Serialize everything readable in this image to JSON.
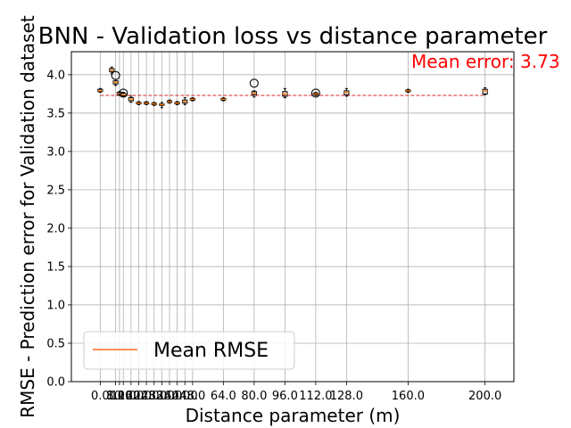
{
  "chart_data": {
    "type": "box",
    "title": "BNN - Validation loss vs distance parameter",
    "xlabel": "Distance parameter (m)",
    "ylabel": "RMSE - Prediction error for Validation dataset",
    "ylim": [
      0.0,
      4.3
    ],
    "xlim": [
      -15,
      215
    ],
    "yticks": [
      0.0,
      0.5,
      1.0,
      1.5,
      2.0,
      2.5,
      3.0,
      3.5,
      4.0
    ],
    "ytick_labels": [
      "0.0",
      "0.5",
      "1.0",
      "1.5",
      "2.0",
      "2.5",
      "3.0",
      "3.5",
      "4.0"
    ],
    "xticks": [
      0.0,
      8.0,
      10.0,
      12.0,
      16.0,
      20.0,
      24.0,
      28.0,
      32.0,
      36.0,
      40.0,
      44.0,
      48.0,
      64.0,
      80.0,
      96.0,
      112.0,
      128.0,
      160.0,
      200.0
    ],
    "xtick_labels": [
      "0.0",
      "8.0",
      "10.0",
      "12.0",
      "16.0",
      "20.0",
      "24.0",
      "28.0",
      "32.0",
      "36.0",
      "40.0",
      "44.0",
      "48.0",
      "64.0",
      "80.0",
      "96.0",
      "112.0",
      "128.0",
      "160.0",
      "200.0"
    ],
    "grid": true,
    "mean_rmse": 3.73,
    "annotation": "Mean error: 3.73",
    "legend": {
      "label": "Mean RMSE",
      "location": "lower-left"
    },
    "boxes": [
      {
        "x": 0.0,
        "median": 3.79,
        "q1": 3.78,
        "q3": 3.81,
        "whislo": 3.77,
        "whishi": 3.82,
        "fliers": []
      },
      {
        "x": 6.0,
        "median": 4.06,
        "q1": 4.04,
        "q3": 4.08,
        "whislo": 4.02,
        "whishi": 4.1,
        "fliers": []
      },
      {
        "x": 8.0,
        "median": 3.9,
        "q1": 3.88,
        "q3": 3.92,
        "whislo": 3.86,
        "whishi": 3.94,
        "fliers": [
          3.99
        ]
      },
      {
        "x": 10.0,
        "median": 3.75,
        "q1": 3.74,
        "q3": 3.77,
        "whislo": 3.73,
        "whishi": 3.78,
        "fliers": []
      },
      {
        "x": 12.0,
        "median": 3.74,
        "q1": 3.73,
        "q3": 3.76,
        "whislo": 3.72,
        "whishi": 3.77,
        "fliers": [
          3.76
        ]
      },
      {
        "x": 16.0,
        "median": 3.68,
        "q1": 3.66,
        "q3": 3.7,
        "whislo": 3.64,
        "whishi": 3.72,
        "fliers": []
      },
      {
        "x": 20.0,
        "median": 3.63,
        "q1": 3.62,
        "q3": 3.64,
        "whislo": 3.61,
        "whishi": 3.65,
        "fliers": []
      },
      {
        "x": 24.0,
        "median": 3.63,
        "q1": 3.62,
        "q3": 3.64,
        "whislo": 3.61,
        "whishi": 3.65,
        "fliers": []
      },
      {
        "x": 28.0,
        "median": 3.62,
        "q1": 3.61,
        "q3": 3.63,
        "whislo": 3.6,
        "whishi": 3.64,
        "fliers": []
      },
      {
        "x": 32.0,
        "median": 3.61,
        "q1": 3.6,
        "q3": 3.62,
        "whislo": 3.57,
        "whishi": 3.64,
        "fliers": []
      },
      {
        "x": 36.0,
        "median": 3.65,
        "q1": 3.64,
        "q3": 3.66,
        "whislo": 3.63,
        "whishi": 3.67,
        "fliers": []
      },
      {
        "x": 40.0,
        "median": 3.63,
        "q1": 3.62,
        "q3": 3.64,
        "whislo": 3.61,
        "whishi": 3.65,
        "fliers": []
      },
      {
        "x": 44.0,
        "median": 3.65,
        "q1": 3.63,
        "q3": 3.67,
        "whislo": 3.61,
        "whishi": 3.7,
        "fliers": []
      },
      {
        "x": 48.0,
        "median": 3.68,
        "q1": 3.67,
        "q3": 3.69,
        "whislo": 3.66,
        "whishi": 3.7,
        "fliers": []
      },
      {
        "x": 64.0,
        "median": 3.68,
        "q1": 3.67,
        "q3": 3.69,
        "whislo": 3.66,
        "whishi": 3.7,
        "fliers": []
      },
      {
        "x": 80.0,
        "median": 3.76,
        "q1": 3.74,
        "q3": 3.78,
        "whislo": 3.71,
        "whishi": 3.79,
        "fliers": [
          3.89
        ]
      },
      {
        "x": 96.0,
        "median": 3.75,
        "q1": 3.72,
        "q3": 3.78,
        "whislo": 3.7,
        "whishi": 3.82,
        "fliers": []
      },
      {
        "x": 112.0,
        "median": 3.75,
        "q1": 3.74,
        "q3": 3.76,
        "whislo": 3.73,
        "whishi": 3.77,
        "fliers": [
          3.76
        ]
      },
      {
        "x": 128.0,
        "median": 3.77,
        "q1": 3.74,
        "q3": 3.79,
        "whislo": 3.72,
        "whishi": 3.82,
        "fliers": []
      },
      {
        "x": 160.0,
        "median": 3.79,
        "q1": 3.78,
        "q3": 3.8,
        "whislo": 3.77,
        "whishi": 3.81,
        "fliers": []
      },
      {
        "x": 200.0,
        "median": 3.79,
        "q1": 3.75,
        "q3": 3.81,
        "whislo": 3.74,
        "whishi": 3.83,
        "fliers": []
      }
    ],
    "colors": {
      "box": "#000000",
      "median": "#ff7f0e",
      "mean_line": "#d62728",
      "legend_line": "#ff4500",
      "annotation": "#ff0000",
      "grid": "#b0b0b0"
    }
  }
}
